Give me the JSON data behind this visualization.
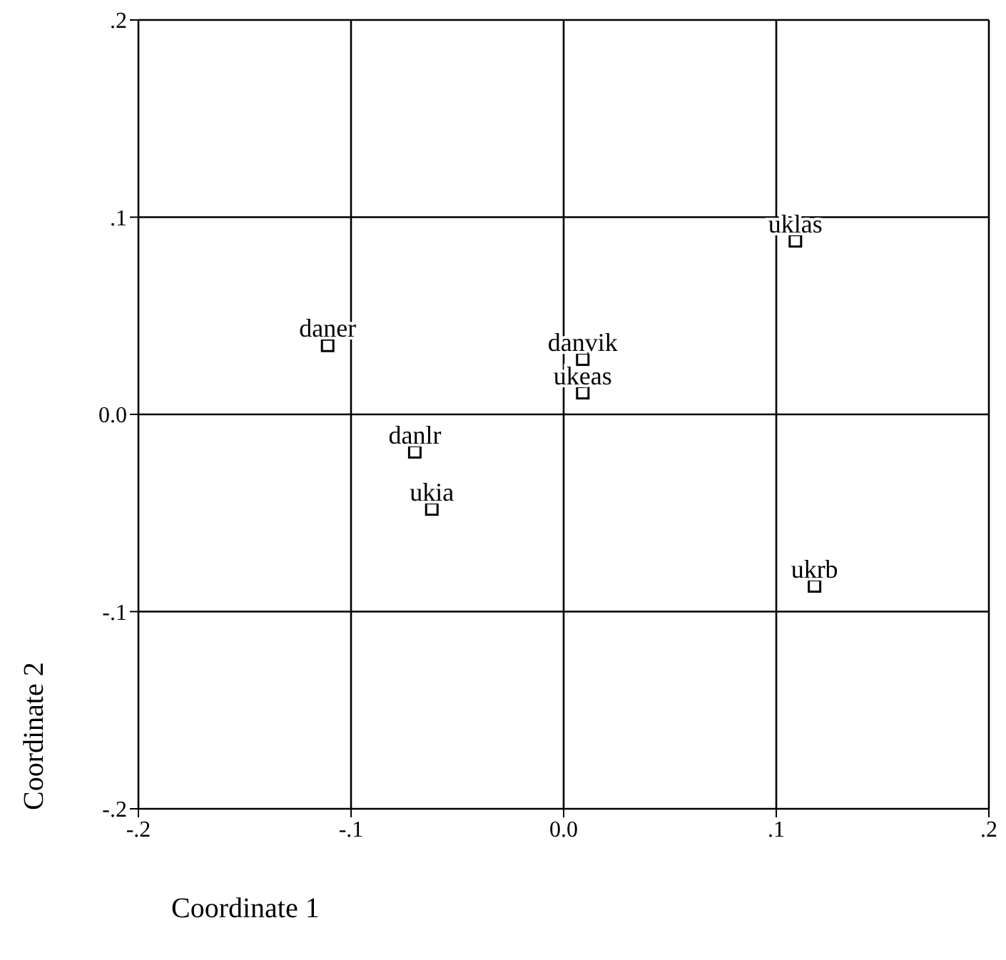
{
  "chart_data": {
    "type": "scatter",
    "xlabel": "Coordinate 1",
    "ylabel": "Coordinate 2",
    "x": [
      -0.111,
      -0.07,
      -0.062,
      0.009,
      0.009,
      0.109,
      0.118
    ],
    "values": [
      0.035,
      -0.019,
      -0.048,
      0.028,
      0.011,
      0.088,
      -0.087
    ],
    "color": "#000000",
    "marker": "square",
    "grid": true,
    "xlim": [
      -0.2,
      0.2
    ],
    "ylim": [
      -0.2,
      0.2
    ],
    "xticks": [
      {
        "value": -0.2,
        "label": "-.2"
      },
      {
        "value": -0.1,
        "label": "-.1"
      },
      {
        "value": 0,
        "label": "0.0"
      },
      {
        "value": 0.1,
        "label": ".1"
      },
      {
        "value": 0.2,
        "label": ".2"
      }
    ],
    "yticks": [
      {
        "value": -0.2,
        "label": "-.2"
      },
      {
        "value": -0.1,
        "label": "-.1"
      },
      {
        "value": 0,
        "label": "0.0"
      },
      {
        "value": 0.1,
        "label": ".1"
      },
      {
        "value": 0.2,
        "label": ".2"
      }
    ],
    "annotations": [
      {
        "text": "daner",
        "x": -0.111,
        "y": 0.035
      },
      {
        "text": "danlr",
        "x": -0.07,
        "y": -0.019
      },
      {
        "text": "ukia",
        "x": -0.062,
        "y": -0.048
      },
      {
        "text": "danvik",
        "x": 0.009,
        "y": 0.028
      },
      {
        "text": "ukeas",
        "x": 0.009,
        "y": 0.011
      },
      {
        "text": "uklas",
        "x": 0.109,
        "y": 0.088
      },
      {
        "text": "ukrb",
        "x": 0.118,
        "y": -0.087
      }
    ]
  }
}
